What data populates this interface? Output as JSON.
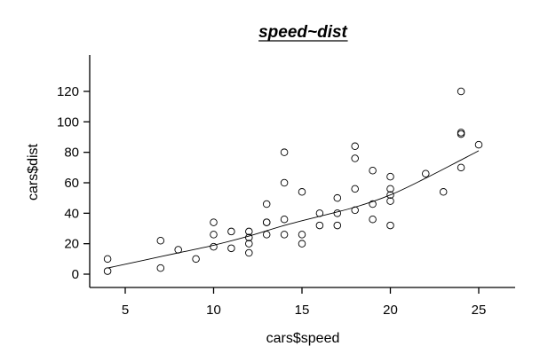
{
  "chart_data": {
    "type": "scatter",
    "title": "speed~dist",
    "xlabel": "cars$speed",
    "ylabel": "cars$dist",
    "xlim": [
      3,
      27
    ],
    "ylim": [
      -5,
      142
    ],
    "xticks": [
      5,
      10,
      15,
      20,
      25
    ],
    "yticks": [
      0,
      20,
      40,
      60,
      80,
      100,
      120
    ],
    "grid": false,
    "points": [
      {
        "x": 4,
        "y": 2
      },
      {
        "x": 4,
        "y": 10
      },
      {
        "x": 7,
        "y": 4
      },
      {
        "x": 7,
        "y": 22
      },
      {
        "x": 8,
        "y": 16
      },
      {
        "x": 9,
        "y": 10
      },
      {
        "x": 10,
        "y": 18
      },
      {
        "x": 10,
        "y": 26
      },
      {
        "x": 10,
        "y": 34
      },
      {
        "x": 11,
        "y": 17
      },
      {
        "x": 11,
        "y": 28
      },
      {
        "x": 12,
        "y": 14
      },
      {
        "x": 12,
        "y": 20
      },
      {
        "x": 12,
        "y": 24
      },
      {
        "x": 12,
        "y": 28
      },
      {
        "x": 13,
        "y": 26
      },
      {
        "x": 13,
        "y": 34
      },
      {
        "x": 13,
        "y": 34
      },
      {
        "x": 13,
        "y": 46
      },
      {
        "x": 14,
        "y": 26
      },
      {
        "x": 14,
        "y": 36
      },
      {
        "x": 14,
        "y": 60
      },
      {
        "x": 14,
        "y": 80
      },
      {
        "x": 15,
        "y": 20
      },
      {
        "x": 15,
        "y": 26
      },
      {
        "x": 15,
        "y": 54
      },
      {
        "x": 16,
        "y": 32
      },
      {
        "x": 16,
        "y": 40
      },
      {
        "x": 17,
        "y": 32
      },
      {
        "x": 17,
        "y": 40
      },
      {
        "x": 17,
        "y": 50
      },
      {
        "x": 18,
        "y": 42
      },
      {
        "x": 18,
        "y": 56
      },
      {
        "x": 18,
        "y": 76
      },
      {
        "x": 18,
        "y": 84
      },
      {
        "x": 19,
        "y": 36
      },
      {
        "x": 19,
        "y": 46
      },
      {
        "x": 19,
        "y": 68
      },
      {
        "x": 20,
        "y": 32
      },
      {
        "x": 20,
        "y": 48
      },
      {
        "x": 20,
        "y": 52
      },
      {
        "x": 20,
        "y": 56
      },
      {
        "x": 20,
        "y": 64
      },
      {
        "x": 22,
        "y": 66
      },
      {
        "x": 23,
        "y": 54
      },
      {
        "x": 24,
        "y": 70
      },
      {
        "x": 24,
        "y": 92
      },
      {
        "x": 24,
        "y": 93
      },
      {
        "x": 24,
        "y": 120
      },
      {
        "x": 25,
        "y": 85
      }
    ],
    "smooth_line": [
      {
        "x": 4,
        "y": 4
      },
      {
        "x": 6,
        "y": 9
      },
      {
        "x": 8,
        "y": 14
      },
      {
        "x": 10,
        "y": 19
      },
      {
        "x": 12,
        "y": 25
      },
      {
        "x": 14,
        "y": 32
      },
      {
        "x": 16,
        "y": 38
      },
      {
        "x": 18,
        "y": 44
      },
      {
        "x": 20,
        "y": 52
      },
      {
        "x": 22,
        "y": 63
      },
      {
        "x": 24,
        "y": 75
      },
      {
        "x": 25,
        "y": 81
      }
    ]
  }
}
